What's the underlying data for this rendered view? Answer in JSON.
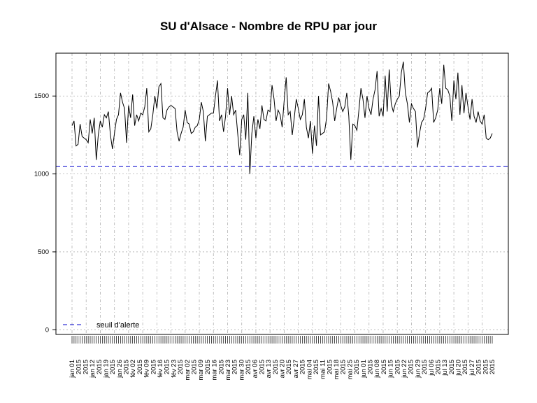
{
  "chart_data": {
    "type": "line",
    "title": "SU d'Alsace  - Nombre de RPU par jour",
    "xlabel": "",
    "ylabel": "",
    "ylim": [
      -30,
      1775
    ],
    "yticks": [
      0,
      500,
      1000,
      1500
    ],
    "grid": true,
    "legend_placement": "bottom-left",
    "colors": {
      "series": "#000000",
      "threshold": "#0000cc",
      "grid": "#b0b0b0"
    },
    "threshold": {
      "name": "seuil d'alerte",
      "value": 1050
    },
    "x_start": "2015-01-01",
    "x_end": "2015-07-31",
    "xtick_labels": [
      "jan 01",
      "2015",
      "2015",
      "jan 12",
      "2015",
      "jan 19",
      "2015",
      "jan 26",
      "2015",
      "fév 02",
      "2015",
      "fév 09",
      "2015",
      "fév 16",
      "2015",
      "fév 23",
      "2015",
      "mar 02",
      "2015",
      "mar 09",
      "2015",
      "mar 16",
      "2015",
      "mar 23",
      "2015",
      "mar 30",
      "2015",
      "avr 06",
      "2015",
      "avr 13",
      "2015",
      "avr 20",
      "2015",
      "avr 27",
      "2015",
      "mai 04",
      "2015",
      "mai 11",
      "2015",
      "mai 18",
      "2015",
      "mai 25",
      "2015",
      "jun 01",
      "2015",
      "jun 08",
      "2015",
      "jun 15",
      "2015",
      "jun 22",
      "2015",
      "jun 29",
      "2015",
      "jul 06",
      "2015",
      "jul 13",
      "2015",
      "jul 20",
      "2015",
      "jul 27",
      "2015",
      "2015",
      "2015"
    ],
    "series": [
      {
        "name": "",
        "values": [
          1310,
          1340,
          1180,
          1190,
          1320,
          1240,
          1230,
          1220,
          1200,
          1350,
          1260,
          1360,
          1090,
          1250,
          1340,
          1300,
          1380,
          1360,
          1400,
          1250,
          1160,
          1260,
          1350,
          1380,
          1520,
          1460,
          1420,
          1200,
          1440,
          1360,
          1510,
          1310,
          1380,
          1340,
          1390,
          1380,
          1430,
          1550,
          1270,
          1290,
          1380,
          1500,
          1420,
          1560,
          1580,
          1360,
          1350,
          1410,
          1430,
          1440,
          1430,
          1420,
          1270,
          1210,
          1260,
          1300,
          1410,
          1330,
          1320,
          1260,
          1270,
          1300,
          1310,
          1350,
          1460,
          1400,
          1210,
          1370,
          1380,
          1390,
          1390,
          1500,
          1600,
          1340,
          1380,
          1270,
          1370,
          1550,
          1380,
          1500,
          1380,
          1410,
          1260,
          1120,
          1350,
          1380,
          1220,
          1520,
          1000,
          1260,
          1370,
          1230,
          1350,
          1290,
          1440,
          1350,
          1340,
          1410,
          1400,
          1570,
          1480,
          1340,
          1410,
          1380,
          1300,
          1470,
          1620,
          1380,
          1400,
          1250,
          1360,
          1480,
          1420,
          1350,
          1380,
          1480,
          1300,
          1230,
          1340,
          1130,
          1310,
          1180,
          1500,
          1250,
          1260,
          1270,
          1360,
          1580,
          1530,
          1460,
          1340,
          1420,
          1490,
          1440,
          1400,
          1430,
          1520,
          1370,
          1090,
          1320,
          1310,
          1280,
          1410,
          1550,
          1480,
          1360,
          1500,
          1420,
          1380,
          1480,
          1540,
          1660,
          1370,
          1420,
          1370,
          1630,
          1400,
          1670,
          1450,
          1400,
          1450,
          1480,
          1500,
          1650,
          1720,
          1520,
          1450,
          1330,
          1450,
          1420,
          1400,
          1170,
          1260,
          1330,
          1350,
          1420,
          1520,
          1530,
          1550,
          1330,
          1360,
          1410,
          1550,
          1450,
          1700,
          1550,
          1540,
          1500,
          1340,
          1600,
          1480,
          1650,
          1380,
          1570,
          1390,
          1520,
          1430,
          1350,
          1480,
          1370,
          1330,
          1400,
          1340,
          1320,
          1380,
          1230,
          1220,
          1230,
          1260
        ]
      }
    ]
  }
}
